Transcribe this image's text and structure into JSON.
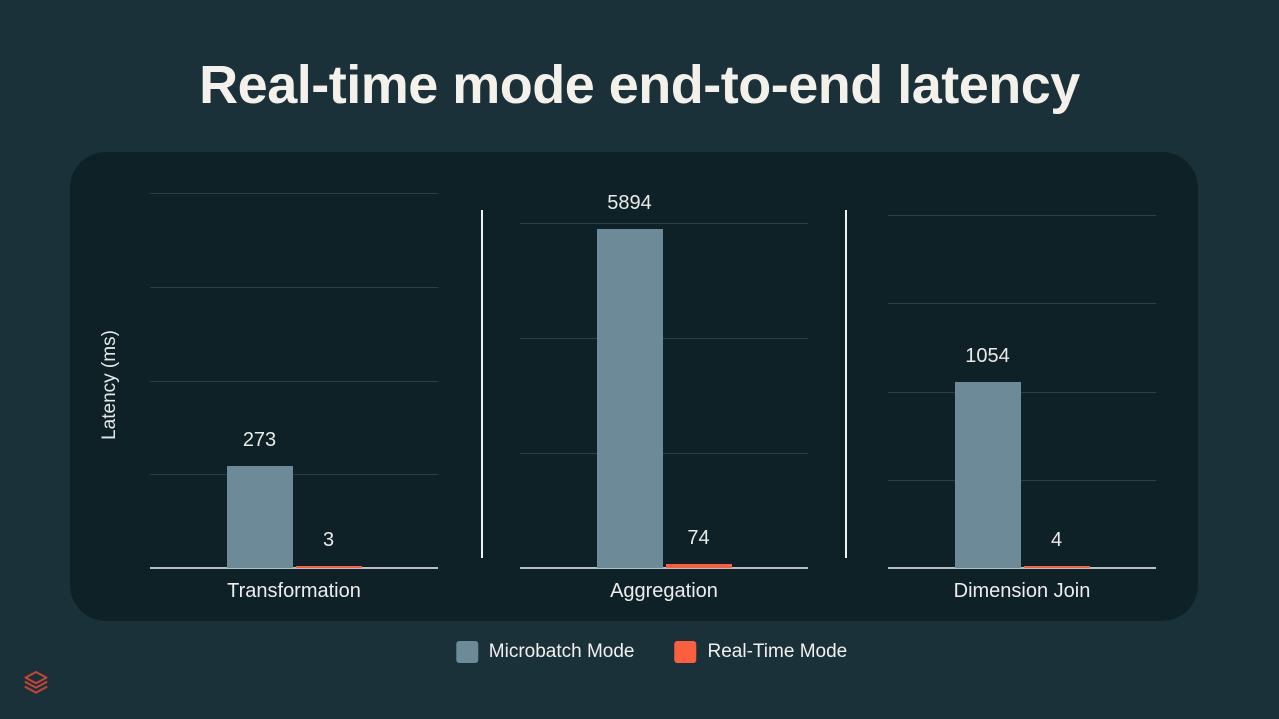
{
  "slide": {
    "title": "Real-time mode end-to-end latency"
  },
  "colors": {
    "background": "#1B3139",
    "card": "#0D2127",
    "microbatch_series": "#6C8A98",
    "realtime_series": "#FB5F40",
    "baseline": "#B7C0C4",
    "gridline": "rgba(220,233,238,0.16)",
    "facet_divider": "#EFF2F3",
    "title_text": "#F4F1EB",
    "label_text": "#ECEAE6",
    "logo_red": "#C84434"
  },
  "chart_data": {
    "type": "bar",
    "title": "Real-time mode end-to-end latency",
    "xlabel": "",
    "ylabel": "Latency (ms)",
    "categories": [
      "Transformation",
      "Aggregation",
      "Dimension Join"
    ],
    "series": [
      {
        "name": "Microbatch Mode",
        "color": "#6C8A98",
        "values": [
          273,
          5894,
          1054
        ]
      },
      {
        "name": "Real-Time Mode",
        "color": "#FB5F40",
        "values": [
          3,
          74,
          4
        ]
      }
    ],
    "value_labels_shown": true,
    "grid": true,
    "y_tick_labels_shown": false,
    "legend_position": "bottom",
    "facets_independent_y": true,
    "facet_y_top": [
      1000,
      6000,
      2000
    ],
    "facet_gridlines": [
      [
        250,
        500,
        750,
        1000
      ],
      [
        2000,
        4000,
        6000
      ],
      [
        500,
        1000,
        1500,
        2000
      ]
    ]
  }
}
